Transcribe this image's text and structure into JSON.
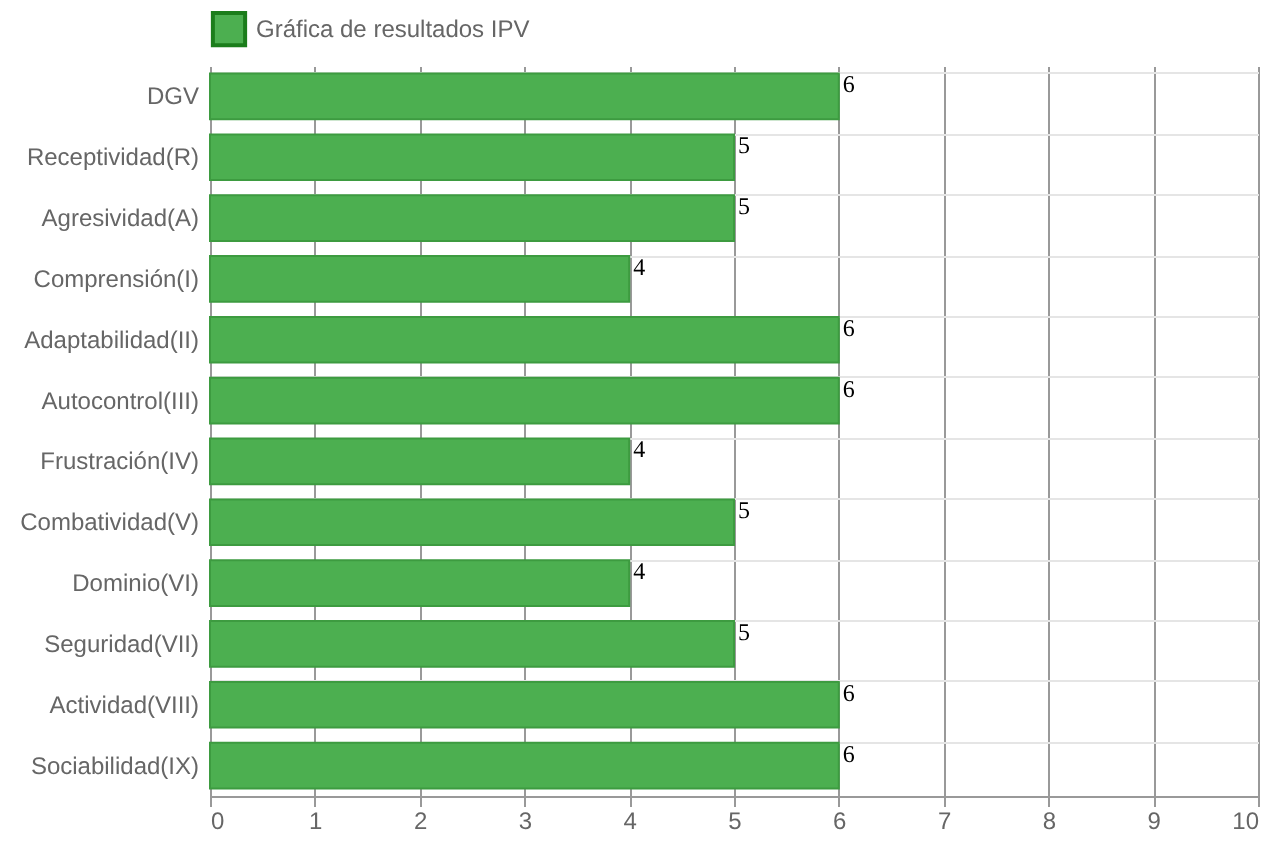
{
  "chart_data": {
    "type": "bar",
    "orientation": "horizontal",
    "categories": [
      "DGV",
      "Receptividad(R)",
      "Agresividad(A)",
      "Comprensión(I)",
      "Adaptabilidad(II)",
      "Autocontrol(III)",
      "Frustración(IV)",
      "Combatividad(V)",
      "Dominio(VI)",
      "Seguridad(VII)",
      "Actividad(VIII)",
      "Sociabilidad(IX)"
    ],
    "series": [
      {
        "name": "Gráfica de resultados IPV",
        "color": "#4caf50",
        "values": [
          6,
          5,
          5,
          4,
          6,
          6,
          4,
          5,
          4,
          5,
          6,
          6
        ]
      }
    ],
    "xlim": [
      0,
      10
    ],
    "xticks": [
      0,
      1,
      2,
      3,
      4,
      5,
      6,
      7,
      8,
      9,
      10
    ],
    "grid": true,
    "legend": "top",
    "data_labels": true
  }
}
